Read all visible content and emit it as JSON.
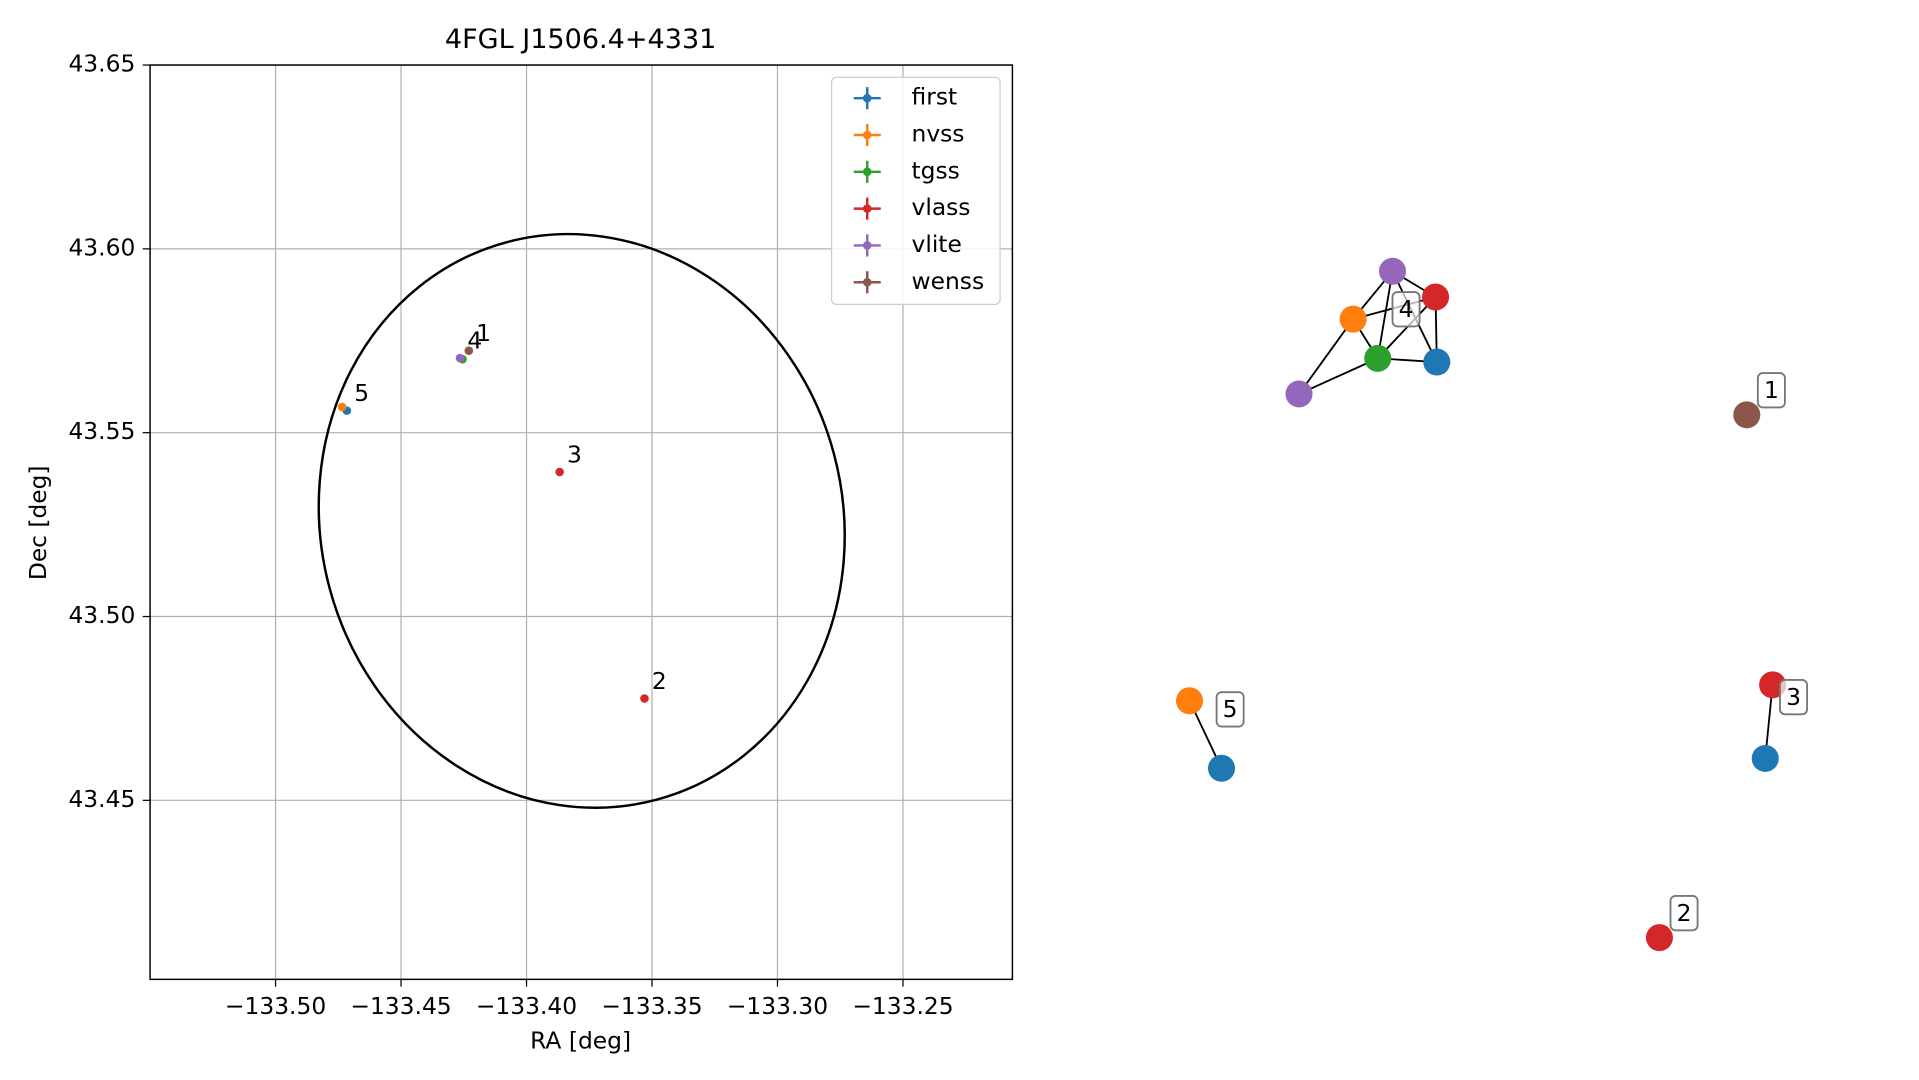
{
  "chart_data": [
    {
      "type": "scatter",
      "title": "4FGL J1506.4+4331",
      "xlabel": "RA [deg]",
      "ylabel": "Dec [deg]",
      "xlim": [
        -133.55,
        -133.2064
      ],
      "ylim": [
        43.4013,
        43.65
      ],
      "xticks": [
        {
          "value": -133.5,
          "label": "−133.50"
        },
        {
          "value": -133.45,
          "label": "−133.45"
        },
        {
          "value": -133.4,
          "label": "−133.40"
        },
        {
          "value": -133.35,
          "label": "−133.35"
        },
        {
          "value": -133.3,
          "label": "−133.30"
        },
        {
          "value": -133.25,
          "label": "−133.25"
        }
      ],
      "yticks": [
        43.45,
        {
          "value": 43.5,
          "label": "43.50"
        },
        43.55,
        {
          "value": 43.6,
          "label": "43.60"
        },
        43.65
      ],
      "grid": true,
      "legend": "upper right",
      "series": [
        {
          "name": "first",
          "color": "#1f77b4",
          "x": [
            -133.4716
          ],
          "y": [
            43.556
          ]
        },
        {
          "name": "nvss",
          "color": "#ff7f0e",
          "x": [
            -133.4735
          ],
          "y": [
            43.557
          ]
        },
        {
          "name": "tgss",
          "color": "#2ca02c",
          "x": [
            -133.4255
          ],
          "y": [
            43.57
          ]
        },
        {
          "name": "vlass",
          "color": "#d62728",
          "x": [
            -133.3868,
            -133.353
          ],
          "y": [
            43.5393,
            43.4777
          ]
        },
        {
          "name": "vlite",
          "color": "#9467bd",
          "x": [
            -133.4265
          ],
          "y": [
            43.5703
          ]
        },
        {
          "name": "wenss",
          "color": "#8c564b",
          "x": [
            -133.423
          ],
          "y": [
            43.5723
          ]
        }
      ],
      "ellipse": {
        "x": -133.378,
        "y": 43.526,
        "width": 0.208,
        "height": 0.157,
        "angle": -15,
        "color": "#000000"
      },
      "annotations": [
        {
          "text": "1",
          "x": -133.423,
          "y": 43.5723
        },
        {
          "text": "4",
          "x": -133.4265,
          "y": 43.5703
        },
        {
          "text": "5",
          "x": -133.4716,
          "y": 43.556
        },
        {
          "text": "3",
          "x": -133.3868,
          "y": 43.5393
        },
        {
          "text": "2",
          "x": -133.353,
          "y": 43.4777
        }
      ]
    },
    {
      "type": "network",
      "node_colors": [
        "#9467bd",
        "#d62728",
        "#ff7f0e",
        "#2ca02c",
        "#1f77b4",
        "#9467bd",
        "#8c564b",
        "#ff7f0e",
        "#1f77b4",
        "#d62728",
        "#1f77b4",
        "#d62728"
      ],
      "edges": [
        [
          0,
          1
        ],
        [
          0,
          2
        ],
        [
          0,
          3
        ],
        [
          0,
          4
        ],
        [
          1,
          2
        ],
        [
          1,
          3
        ],
        [
          1,
          4
        ],
        [
          2,
          3
        ],
        [
          3,
          4
        ],
        [
          2,
          5
        ],
        [
          3,
          5
        ],
        [
          7,
          8
        ],
        [
          9,
          10
        ]
      ],
      "group_labels": [
        "4",
        "1",
        "5",
        "3",
        "2"
      ]
    }
  ]
}
